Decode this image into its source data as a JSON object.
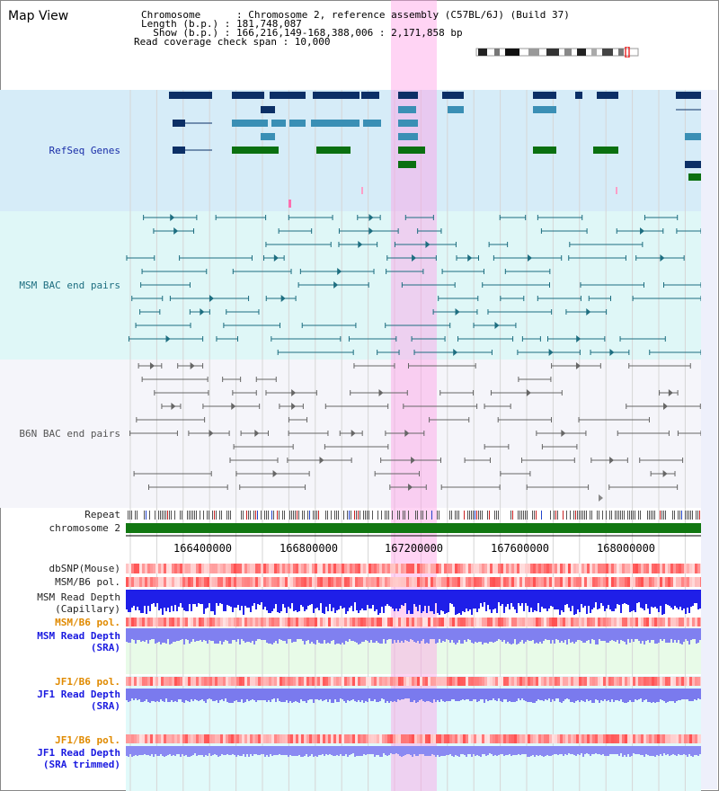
{
  "header": {
    "title": "Map View",
    "chromosome_line": "Chromosome      : Chromosome 2, reference assembly (C57BL/6J) (Build 37)",
    "length_line": "Length (b.p.) : 181,748,087",
    "show_line": "  Show (b.p.) : 166,216,149-168,388,006 : 2,171,858 bp",
    "coverage_line": "Read coverage check span : 10,000"
  },
  "tracks": {
    "refseq": "RefSeq Genes",
    "msm_bac": "MSM BAC end pairs",
    "b6n_bac": "B6N BAC end pairs",
    "repeat": "Repeat",
    "chromosome": "chromosome 2",
    "dbsnp": "dbSNP(Mouse)",
    "msm_pol": "MSM/B6 pol.",
    "msm_depth_cap_1": "MSM Read Depth",
    "msm_depth_cap_2": "(Capillary)",
    "msm_pol_sra": "MSM/B6 pol.",
    "msm_depth_sra_1": "MSM Read Depth",
    "msm_depth_sra_2": "(SRA)",
    "jf1_pol_1": "JF1/B6 pol.",
    "jf1_depth_1": "JF1 Read Depth",
    "jf1_depth_1b": "(SRA)",
    "jf1_pol_2": "JF1/B6 pol.",
    "jf1_depth_2": "JF1 Read Depth",
    "jf1_depth_2b": "(SRA trimmed)"
  },
  "axis": {
    "ticks": [
      "166400000",
      "166800000",
      "167200000",
      "167600000",
      "168000000"
    ]
  },
  "colors": {
    "refseq_bg": "#d6ecf8",
    "msm_bg": "#dff7f7",
    "b6n_bg": "#f4f4f9",
    "gene_navy": "#0c2f66",
    "gene_teal": "#3a8fb5",
    "gene_green": "#0a7010",
    "bac_teal": "#1d6e80",
    "bac_gray": "#666666",
    "chrom_green": "#117711",
    "depth_blue": "#2222ee",
    "depth_violet": "#7a7aee",
    "highlight": "#ffb6e8"
  }
}
